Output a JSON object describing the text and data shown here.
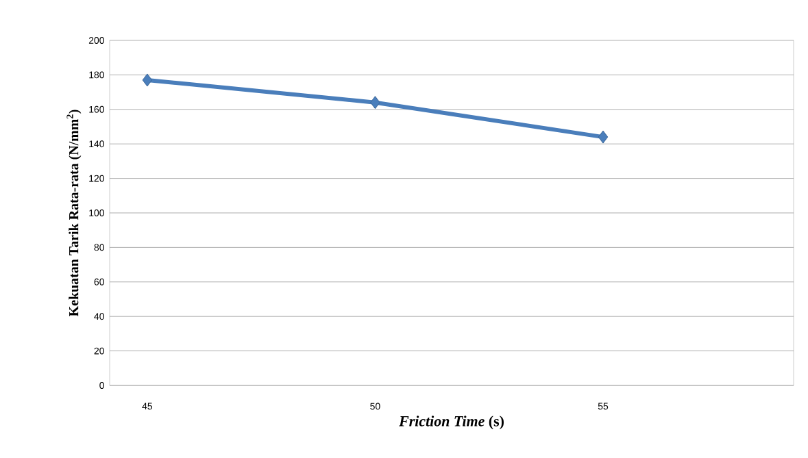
{
  "chart_data": {
    "type": "line",
    "xlabel": "*Friction Time* (s)",
    "ylabel": "Kekuatan Tarik Rata-rata (N/mm$^{2}$)",
    "categories": [
      "45",
      "50",
      "55"
    ],
    "series": [
      {
        "color": "#4a7ebb",
        "values": [
          177,
          164,
          144
        ]
      }
    ],
    "ylim": [
      0,
      200
    ],
    "yticks": [
      0,
      20,
      40,
      60,
      80,
      100,
      120,
      140,
      160,
      180,
      200
    ],
    "grid": "y",
    "marker": "diamond",
    "line_style": "solid"
  }
}
